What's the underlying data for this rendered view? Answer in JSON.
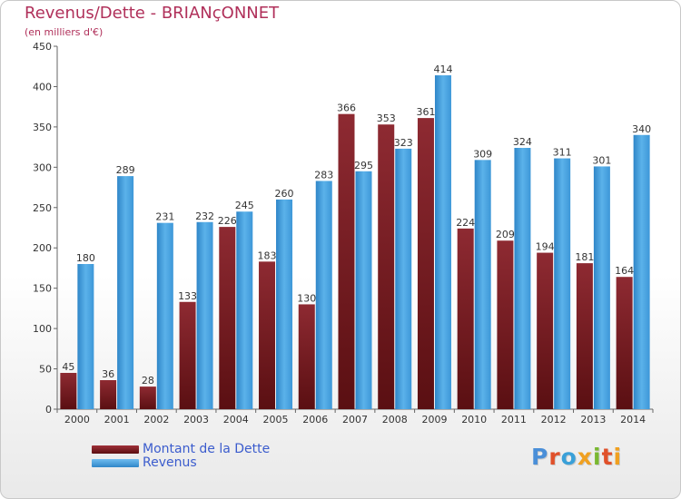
{
  "chart_data": {
    "type": "bar",
    "title": "Revenus/Dette - BRIANçONNET",
    "subtitle": "(en milliers d'€)",
    "categories": [
      "2000",
      "2001",
      "2002",
      "2003",
      "2004",
      "2005",
      "2006",
      "2007",
      "2008",
      "2009",
      "2010",
      "2011",
      "2012",
      "2013",
      "2014"
    ],
    "series": [
      {
        "name": "Montant de la Dette",
        "color": "#7b1a1f",
        "values": [
          45,
          36,
          28,
          133,
          226,
          183,
          130,
          366,
          353,
          361,
          224,
          209,
          194,
          181,
          164
        ]
      },
      {
        "name": "Revenus",
        "color": "#4aa3e0",
        "values": [
          180,
          289,
          231,
          232,
          245,
          260,
          283,
          295,
          323,
          414,
          309,
          324,
          311,
          301,
          340
        ]
      }
    ],
    "ylim": [
      0,
      450
    ],
    "yticks": [
      0,
      50,
      100,
      150,
      200,
      250,
      300,
      350,
      400,
      450
    ],
    "grid": false,
    "legend_position": "bottom-left"
  },
  "branding": {
    "logo_text": "Proxiti"
  }
}
